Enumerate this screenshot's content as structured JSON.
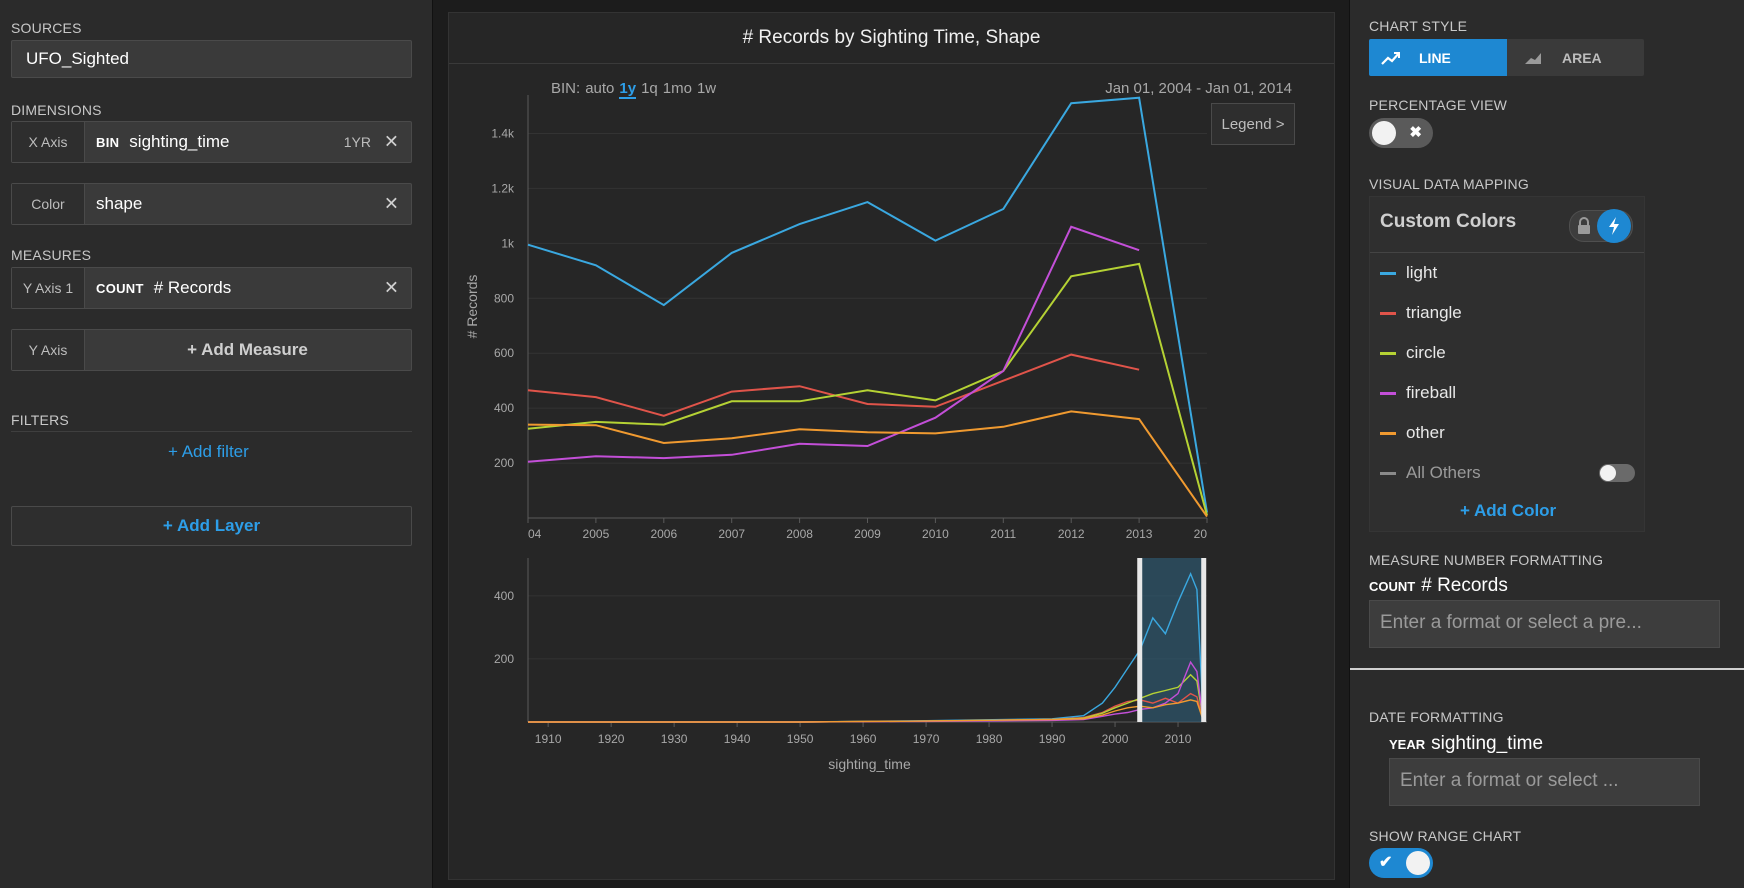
{
  "left": {
    "sources_label": "SOURCES",
    "source_value": "UFO_Sighted",
    "dimensions_label": "DIMENSIONS",
    "x_axis": {
      "label": "X Axis",
      "tag": "BIN",
      "field": "sighting_time",
      "bin": "1YR",
      "close": "✕"
    },
    "color": {
      "label": "Color",
      "field": "shape",
      "close": "✕"
    },
    "measures_label": "MEASURES",
    "y_axis1": {
      "label": "Y Axis 1",
      "tag": "COUNT",
      "field": "# Records",
      "close": "✕"
    },
    "y_axis": {
      "label": "Y Axis",
      "add": "+ Add Measure"
    },
    "filters_label": "FILTERS",
    "add_filter": "+ Add filter",
    "add_layer": "+ Add Layer"
  },
  "chart_header": {
    "title": "# Records by Sighting Time, Shape",
    "bin_prefix": "BIN:",
    "bins": [
      "auto",
      "1y",
      "1q",
      "1mo",
      "1w"
    ],
    "active_bin": "1y",
    "date_range": "Jan 01, 2004 - Jan 01, 2014",
    "legend_button": "Legend >"
  },
  "chart_data": [
    {
      "type": "line",
      "ylabel": "# Records",
      "xlabel": "",
      "categories": [
        "04",
        "2005",
        "2006",
        "2007",
        "2008",
        "2009",
        "2010",
        "2011",
        "2012",
        "2013",
        "20"
      ],
      "y_ticks": [
        "200",
        "400",
        "600",
        "800",
        "1k",
        "1.2k",
        "1.4k"
      ],
      "ylim": [
        0,
        1540
      ],
      "series": [
        {
          "name": "light",
          "color": "#3aa8e0",
          "values": [
            995,
            920,
            775,
            965,
            1070,
            1150,
            1010,
            1125,
            1510,
            1530,
            20
          ]
        },
        {
          "name": "triangle",
          "color": "#e0544a",
          "values": [
            465,
            440,
            372,
            460,
            480,
            415,
            405,
            500,
            595,
            540,
            null
          ]
        },
        {
          "name": "circle",
          "color": "#b5d234",
          "values": [
            325,
            350,
            340,
            425,
            425,
            465,
            428,
            535,
            880,
            925,
            10
          ]
        },
        {
          "name": "fireball",
          "color": "#c34fd8",
          "values": [
            205,
            225,
            218,
            230,
            270,
            262,
            365,
            535,
            1060,
            975,
            null
          ]
        },
        {
          "name": "other",
          "color": "#f09a30",
          "values": [
            340,
            338,
            273,
            290,
            323,
            312,
            308,
            332,
            388,
            360,
            5
          ]
        }
      ]
    },
    {
      "type": "line",
      "xlabel": "sighting_time",
      "ylabel": "",
      "x_ticks": [
        "1910",
        "1920",
        "1930",
        "1940",
        "1950",
        "1960",
        "1970",
        "1980",
        "1990",
        "2000",
        "2010"
      ],
      "y_ticks": [
        "200",
        "400"
      ],
      "xlim": [
        1906.8,
        2014.6
      ],
      "ylim": [
        0,
        520
      ],
      "brush_range": [
        2004,
        2014
      ],
      "series": [
        {
          "name": "light",
          "color": "#3aa8e0",
          "x": [
            1906.8,
            1950,
            1970,
            1990,
            1995,
            1998,
            2000,
            2002,
            2004,
            2006,
            2008,
            2010,
            2012,
            2013,
            2014
          ],
          "values": [
            0,
            0,
            4,
            10,
            20,
            60,
            110,
            170,
            230,
            330,
            280,
            380,
            470,
            420,
            20
          ]
        },
        {
          "name": "triangle",
          "color": "#e0544a",
          "x": [
            1906.8,
            1950,
            1970,
            1990,
            1995,
            1998,
            2000,
            2002,
            2004,
            2006,
            2008,
            2010,
            2012,
            2013,
            2014
          ],
          "values": [
            0,
            0,
            3,
            8,
            14,
            30,
            50,
            65,
            70,
            60,
            75,
            60,
            90,
            80,
            5
          ]
        },
        {
          "name": "circle",
          "color": "#b5d234",
          "x": [
            1906.8,
            1950,
            1970,
            1990,
            1995,
            1998,
            2000,
            2002,
            2004,
            2006,
            2008,
            2010,
            2012,
            2013,
            2014
          ],
          "values": [
            0,
            0,
            3,
            8,
            12,
            28,
            45,
            60,
            75,
            90,
            100,
            110,
            150,
            130,
            5
          ]
        },
        {
          "name": "fireball",
          "color": "#c34fd8",
          "x": [
            1906.8,
            1950,
            1970,
            1990,
            1995,
            1998,
            2000,
            2002,
            2004,
            2006,
            2008,
            2010,
            2012,
            2013,
            2014
          ],
          "values": [
            0,
            0,
            2,
            5,
            8,
            18,
            25,
            30,
            40,
            45,
            60,
            90,
            190,
            160,
            5
          ]
        },
        {
          "name": "other",
          "color": "#f09a30",
          "x": [
            1906.8,
            1950,
            1970,
            1990,
            1995,
            1998,
            2000,
            2002,
            2004,
            2006,
            2008,
            2010,
            2012,
            2013,
            2014
          ],
          "values": [
            0,
            0,
            3,
            8,
            10,
            22,
            35,
            45,
            50,
            45,
            55,
            60,
            70,
            65,
            5
          ]
        }
      ]
    }
  ],
  "right": {
    "chart_style_label": "CHART STYLE",
    "line_btn": "LINE",
    "area_btn": "AREA",
    "percentage_label": "PERCENTAGE VIEW",
    "percentage_on": false,
    "visual_mapping_label": "VISUAL DATA MAPPING",
    "custom_colors": "Custom Colors",
    "legend": [
      {
        "name": "light",
        "color": "#3aa8e0"
      },
      {
        "name": "triangle",
        "color": "#e0544a"
      },
      {
        "name": "circle",
        "color": "#b5d234"
      },
      {
        "name": "fireball",
        "color": "#c34fd8"
      },
      {
        "name": "other",
        "color": "#f09a30"
      }
    ],
    "all_others": "All Others",
    "add_color": "+ Add Color",
    "measure_format_label": "MEASURE NUMBER FORMATTING",
    "measure_tag": "COUNT",
    "measure_field": "# Records",
    "measure_placeholder": "Enter a format or select a pre...",
    "date_format_label": "DATE FORMATTING",
    "date_tag": "YEAR",
    "date_field": "sighting_time",
    "date_placeholder": "Enter a format or select ...",
    "range_chart_label": "SHOW RANGE CHART",
    "range_chart_on": true
  }
}
